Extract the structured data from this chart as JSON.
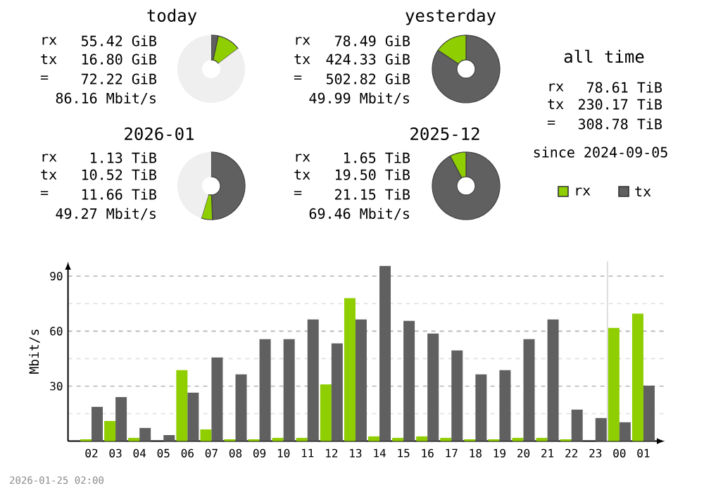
{
  "chart_data": [
    {
      "type": "donut",
      "title": "today",
      "categories": [
        null,
        null,
        null
      ],
      "values": [
        3.4,
        11.2,
        85.4
      ],
      "colors": [
        "#606060",
        "#8fce00",
        "#efefef"
      ],
      "annotations": [
        "rx",
        "55.42 GiB",
        "tx",
        "16.80 GiB",
        "=",
        "72.22 GiB",
        "86.16 Mbit/s"
      ]
    },
    {
      "type": "donut",
      "title": "yesterday",
      "categories": [
        null,
        null
      ],
      "values": [
        84.4,
        15.6
      ],
      "colors": [
        "#606060",
        "#8fce00"
      ],
      "annotations": [
        "rx",
        "78.49 GiB",
        "tx",
        "424.33 GiB",
        "=",
        "502.82 GiB",
        "49.99 Mbit/s"
      ]
    },
    {
      "type": "other",
      "title": "all time",
      "annotations": [
        "rx",
        "78.61 TiB",
        "tx",
        "230.17 TiB",
        "=",
        "308.78 TiB",
        "since 2024-09-05"
      ]
    },
    {
      "type": "donut",
      "title": "2026-01",
      "categories": [
        null,
        null,
        null
      ],
      "values": [
        49.4,
        5.3,
        45.3
      ],
      "colors": [
        "#606060",
        "#8fce00",
        "#efefef"
      ],
      "annotations": [
        "rx",
        "1.13 TiB",
        "tx",
        "10.52 TiB",
        "=",
        "11.66 TiB",
        "49.27 Mbit/s"
      ]
    },
    {
      "type": "donut",
      "title": "2025-12",
      "categories": [
        null,
        null
      ],
      "values": [
        92.2,
        7.8
      ],
      "colors": [
        "#606060",
        "#8fce00"
      ],
      "annotations": [
        "rx",
        "1.65 TiB",
        "tx",
        "19.50 TiB",
        "=",
        "21.15 TiB",
        "69.46 Mbit/s"
      ]
    },
    {
      "type": "bar",
      "ylabel": "Mbit/s",
      "categories": [
        "02",
        "03",
        "04",
        "05",
        "06",
        "07",
        "08",
        "09",
        "10",
        "11",
        "12",
        "13",
        "14",
        "15",
        "16",
        "17",
        "18",
        "19",
        "20",
        "21",
        "22",
        "23",
        "00",
        "01"
      ],
      "series": [
        {
          "name": "rx",
          "color": "#8fce00",
          "values": [
            1,
            11,
            1.8,
            0,
            38.7,
            6.4,
            1,
            1,
            1.8,
            1.8,
            31,
            78,
            2.6,
            1.8,
            2.6,
            1.8,
            1,
            1,
            1.8,
            1.8,
            1,
            0,
            61.8,
            69.5
          ]
        },
        {
          "name": "tx",
          "color": "#606060",
          "values": [
            18.7,
            24,
            7.2,
            3.3,
            26.4,
            45.6,
            36.4,
            55.6,
            55.6,
            66.4,
            53.3,
            66.4,
            95.6,
            65.6,
            58.7,
            49.5,
            36.4,
            38.7,
            55.6,
            66.4,
            17.2,
            12.6,
            10.3,
            30.3
          ]
        }
      ],
      "ylim": [
        0,
        98
      ],
      "yticks": [
        {
          "value": 15,
          "label": null
        },
        30,
        {
          "value": 45,
          "label": null
        },
        60,
        {
          "value": 75,
          "label": null
        },
        90
      ],
      "grid": "y",
      "legend": "top right",
      "ref_lines": [
        {
          "axis": "x",
          "value": "00",
          "color": "#dddddd"
        }
      ],
      "annotations": [
        "2026-01-25 02:00"
      ]
    }
  ]
}
